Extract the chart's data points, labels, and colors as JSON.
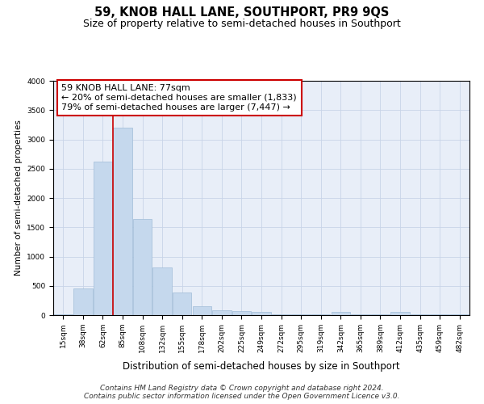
{
  "title": "59, KNOB HALL LANE, SOUTHPORT, PR9 9QS",
  "subtitle": "Size of property relative to semi-detached houses in Southport",
  "xlabel": "Distribution of semi-detached houses by size in Southport",
  "ylabel": "Number of semi-detached properties",
  "categories": [
    "15sqm",
    "38sqm",
    "62sqm",
    "85sqm",
    "108sqm",
    "132sqm",
    "155sqm",
    "178sqm",
    "202sqm",
    "225sqm",
    "249sqm",
    "272sqm",
    "295sqm",
    "319sqm",
    "342sqm",
    "365sqm",
    "389sqm",
    "412sqm",
    "435sqm",
    "459sqm",
    "482sqm"
  ],
  "values": [
    15,
    460,
    2620,
    3200,
    1640,
    810,
    390,
    155,
    80,
    70,
    55,
    10,
    10,
    10,
    60,
    10,
    10,
    55,
    10,
    10,
    10
  ],
  "bar_color": "#c5d8ed",
  "bar_edge_color": "#a0bcd8",
  "annotation_line1": "59 KNOB HALL LANE: 77sqm",
  "annotation_line2": "← 20% of semi-detached houses are smaller (1,833)",
  "annotation_line3": "79% of semi-detached houses are larger (7,447) →",
  "annotation_box_color": "#ffffff",
  "annotation_box_edge": "#cc0000",
  "vline_color": "#cc0000",
  "vline_x": 2.5,
  "ylim": [
    0,
    4000
  ],
  "yticks": [
    0,
    500,
    1000,
    1500,
    2000,
    2500,
    3000,
    3500,
    4000
  ],
  "grid_color": "#c8d4e8",
  "background_color": "#e8eef8",
  "footer_line1": "Contains HM Land Registry data © Crown copyright and database right 2024.",
  "footer_line2": "Contains public sector information licensed under the Open Government Licence v3.0.",
  "title_fontsize": 10.5,
  "subtitle_fontsize": 9,
  "xlabel_fontsize": 8.5,
  "ylabel_fontsize": 7.5,
  "tick_fontsize": 6.5,
  "annotation_fontsize": 8,
  "footer_fontsize": 6.5
}
